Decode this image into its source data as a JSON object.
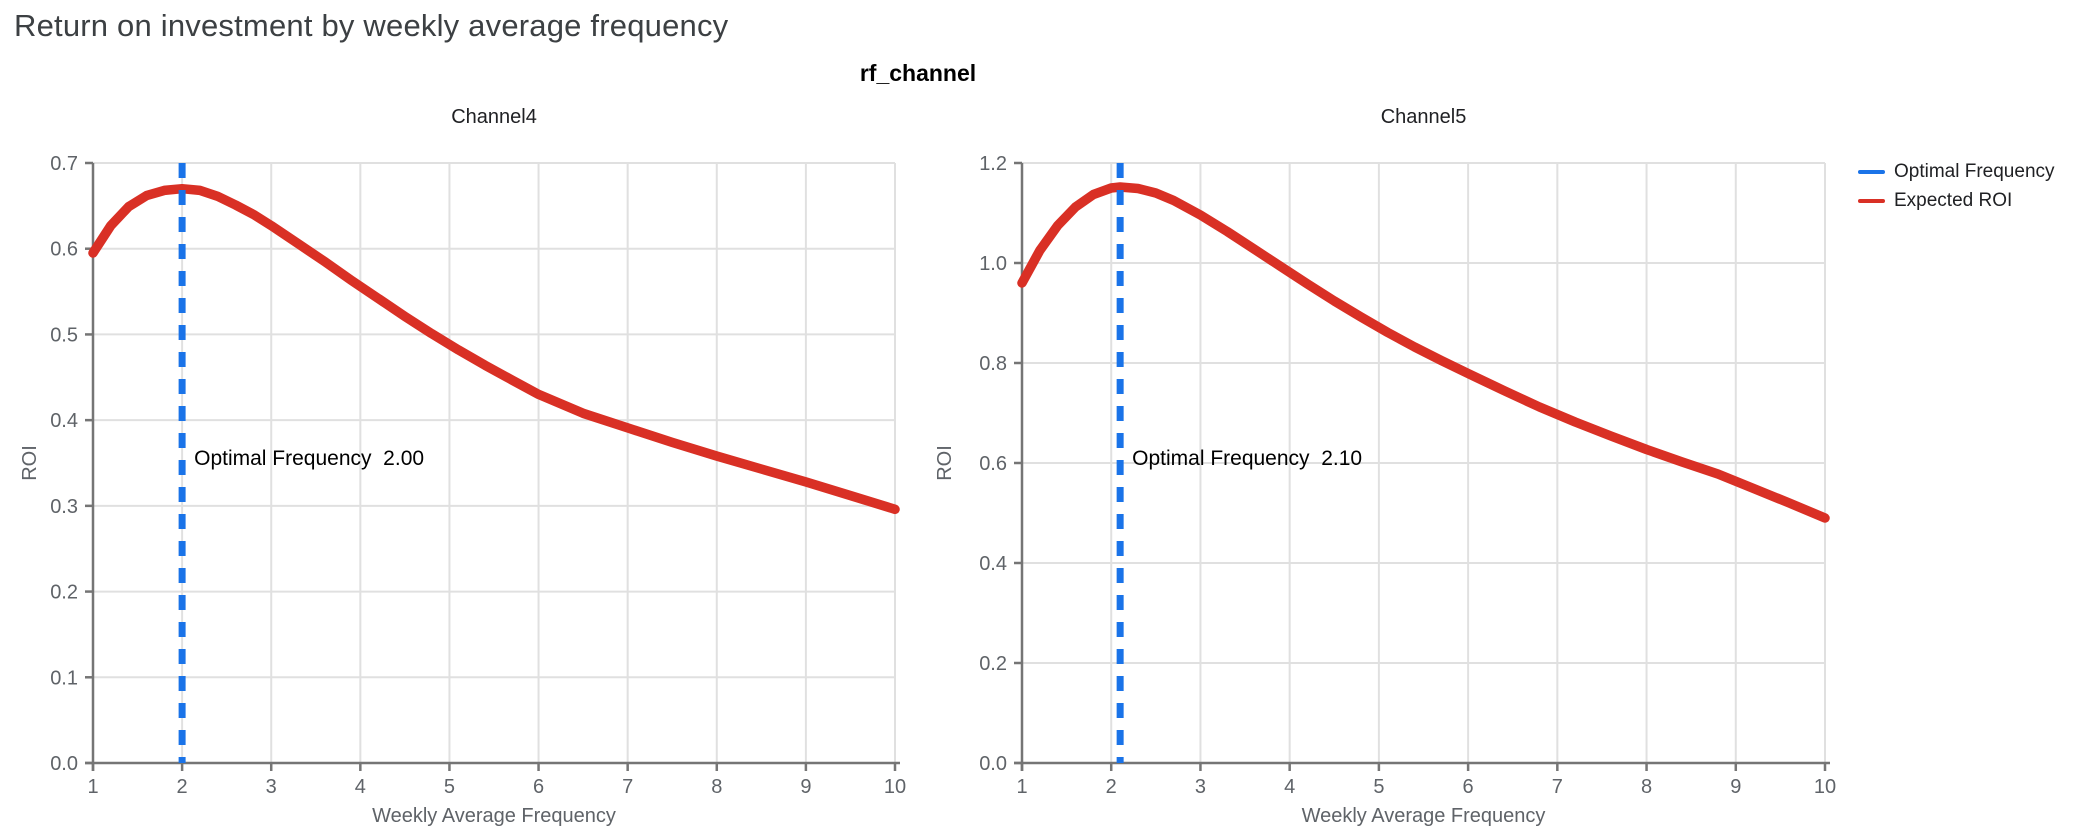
{
  "page": {
    "title": "Return on investment by weekly average frequency",
    "facet_header": "rf_channel"
  },
  "legend": {
    "position": "top-right",
    "items": [
      {
        "label": "Optimal Frequency",
        "color": "#1a73e8",
        "style": "dashed-vline"
      },
      {
        "label": "Expected ROI",
        "color": "#d93025",
        "style": "solid-line"
      }
    ]
  },
  "colors": {
    "title_text": "#3c4043",
    "axis_line": "#757575",
    "tick_label": "#5f6368",
    "gridline": "#e0e0e0",
    "expected_roi": "#d93025",
    "optimal_frequency": "#1a73e8",
    "annotation_text": "#000000",
    "chart_title": "#202124"
  },
  "chart_data": [
    {
      "type": "line",
      "title": "Channel4",
      "xlabel": "Weekly Average Frequency",
      "ylabel": "ROI",
      "xlim": [
        1,
        10
      ],
      "ylim": [
        0,
        0.7
      ],
      "xticks": [
        "1",
        "2",
        "3",
        "4",
        "5",
        "6",
        "7",
        "8",
        "9",
        "10"
      ],
      "yticks": [
        "0.0",
        "0.1",
        "0.2",
        "0.3",
        "0.4",
        "0.5",
        "0.6",
        "0.7"
      ],
      "grid": true,
      "optimal_frequency": 2.0,
      "annotation": {
        "label": "Optimal Frequency",
        "value": "2.00"
      },
      "series": [
        {
          "name": "Expected ROI",
          "kind": "curve",
          "x": [
            1,
            1.2,
            1.4,
            1.6,
            1.8,
            2,
            2.2,
            2.4,
            2.6,
            2.8,
            3,
            3.3,
            3.6,
            3.9,
            4.2,
            4.5,
            4.8,
            5.1,
            5.4,
            5.7,
            6,
            6.5,
            7,
            7.5,
            8,
            8.5,
            9,
            9.5,
            10
          ],
          "y": [
            0.595,
            0.627,
            0.649,
            0.662,
            0.668,
            0.67,
            0.668,
            0.661,
            0.651,
            0.64,
            0.627,
            0.606,
            0.585,
            0.563,
            0.542,
            0.521,
            0.501,
            0.482,
            0.464,
            0.447,
            0.43,
            0.408,
            0.391,
            0.374,
            0.358,
            0.343,
            0.328,
            0.312,
            0.296
          ]
        },
        {
          "name": "Optimal Frequency",
          "kind": "vline",
          "x": 2.0
        }
      ]
    },
    {
      "type": "line",
      "title": "Channel5",
      "xlabel": "Weekly Average Frequency",
      "ylabel": "ROI",
      "xlim": [
        1,
        10
      ],
      "ylim": [
        0,
        1.2
      ],
      "xticks": [
        "1",
        "2",
        "3",
        "4",
        "5",
        "6",
        "7",
        "8",
        "9",
        "10"
      ],
      "yticks": [
        "0.0",
        "0.2",
        "0.4",
        "0.6",
        "0.8",
        "1.0",
        "1.2"
      ],
      "grid": true,
      "optimal_frequency": 2.1,
      "annotation": {
        "label": "Optimal Frequency",
        "value": "2.10"
      },
      "series": [
        {
          "name": "Expected ROI",
          "kind": "curve",
          "x": [
            1,
            1.2,
            1.4,
            1.6,
            1.8,
            2,
            2.1,
            2.3,
            2.5,
            2.7,
            3,
            3.3,
            3.6,
            3.9,
            4.2,
            4.5,
            4.8,
            5.1,
            5.4,
            5.7,
            6,
            6.4,
            6.8,
            7.2,
            7.6,
            8,
            8.4,
            8.8,
            9.2,
            9.6,
            10
          ],
          "y": [
            0.96,
            1.025,
            1.075,
            1.112,
            1.137,
            1.15,
            1.152,
            1.149,
            1.14,
            1.125,
            1.096,
            1.063,
            1.028,
            0.993,
            0.958,
            0.924,
            0.892,
            0.861,
            0.832,
            0.805,
            0.779,
            0.745,
            0.712,
            0.682,
            0.654,
            0.627,
            0.602,
            0.578,
            0.549,
            0.52,
            0.49
          ]
        },
        {
          "name": "Optimal Frequency",
          "kind": "vline",
          "x": 2.1
        }
      ]
    }
  ]
}
